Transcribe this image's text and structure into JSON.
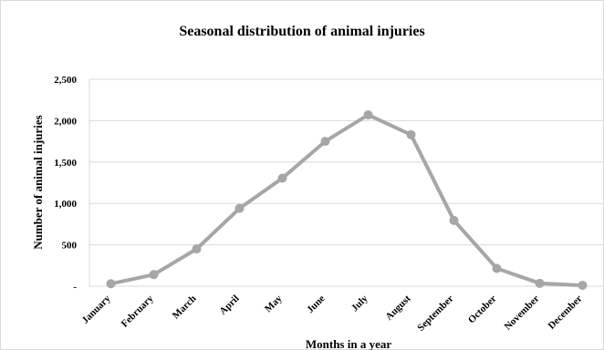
{
  "chart_data": {
    "type": "line",
    "title": "Seasonal distribution of animal injuries",
    "xlabel": "Months in a year",
    "ylabel": "Number of animal injuries",
    "categories": [
      "January",
      "February",
      "March",
      "April",
      "May",
      "June",
      "July",
      "August",
      "September",
      "October",
      "November",
      "December"
    ],
    "series": [
      {
        "values": [
          30,
          140,
          450,
          940,
          1305,
          1750,
          2070,
          1830,
          795,
          215,
          35,
          10
        ]
      }
    ],
    "ylim": [
      0,
      2500
    ],
    "yticks": [
      0,
      500,
      1000,
      1500,
      2000,
      2500
    ],
    "ytick_labels": [
      "-",
      "500",
      "1,000",
      "1,500",
      "2,000",
      "2,500"
    ],
    "grid": true,
    "legend": "none",
    "line_color": "#a6a6a6",
    "grid_color": "#d9d9d9"
  }
}
